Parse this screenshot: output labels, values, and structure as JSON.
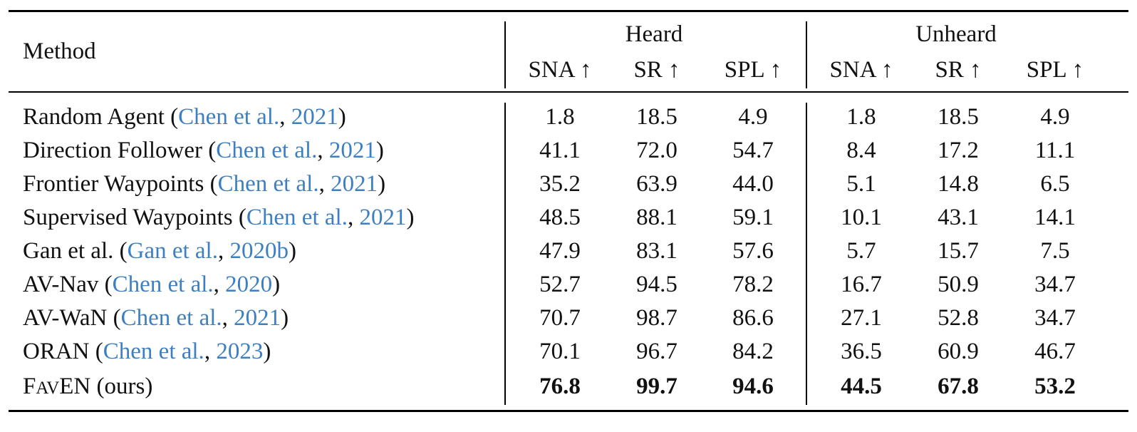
{
  "table": {
    "method_header": "Method",
    "groups": [
      "Heard",
      "Unheard"
    ],
    "metrics": [
      "SNA ↑",
      "SR ↑",
      "SPL ↑",
      "SNA ↑",
      "SR ↑",
      "SPL ↑"
    ],
    "rows": [
      {
        "name": "Random Agent",
        "cite_author": "Chen et al.",
        "cite_year": "2021",
        "values": [
          "1.8",
          "18.5",
          "4.9",
          "1.8",
          "18.5",
          "4.9"
        ]
      },
      {
        "name": "Direction Follower",
        "cite_author": "Chen et al.",
        "cite_year": "2021",
        "values": [
          "41.1",
          "72.0",
          "54.7",
          "8.4",
          "17.2",
          "11.1"
        ]
      },
      {
        "name": "Frontier Waypoints",
        "cite_author": "Chen et al.",
        "cite_year": "2021",
        "values": [
          "35.2",
          "63.9",
          "44.0",
          "5.1",
          "14.8",
          "6.5"
        ]
      },
      {
        "name": "Supervised Waypoints",
        "cite_author": "Chen et al.",
        "cite_year": "2021",
        "values": [
          "48.5",
          "88.1",
          "59.1",
          "10.1",
          "43.1",
          "14.1"
        ]
      },
      {
        "name": "Gan et al.",
        "cite_author": "Gan et al.",
        "cite_year": "2020b",
        "values": [
          "47.9",
          "83.1",
          "57.6",
          "5.7",
          "15.7",
          "7.5"
        ]
      },
      {
        "name": "AV-Nav",
        "cite_author": "Chen et al.",
        "cite_year": "2020",
        "values": [
          "52.7",
          "94.5",
          "78.2",
          "16.7",
          "50.9",
          "34.7"
        ]
      },
      {
        "name": "AV-WaN",
        "cite_author": "Chen et al.",
        "cite_year": "2021",
        "values": [
          "70.7",
          "98.7",
          "86.6",
          "27.1",
          "52.8",
          "34.7"
        ]
      },
      {
        "name": "ORAN",
        "cite_author": "Chen et al.",
        "cite_year": "2023",
        "values": [
          "70.1",
          "96.7",
          "84.2",
          "36.5",
          "60.9",
          "46.7"
        ]
      }
    ],
    "ours": {
      "name_f": "F",
      "name_av": "AV",
      "name_en": "EN",
      "suffix": "(ours)",
      "values": [
        "76.8",
        "99.7",
        "94.6",
        "44.5",
        "67.8",
        "53.2"
      ]
    }
  }
}
